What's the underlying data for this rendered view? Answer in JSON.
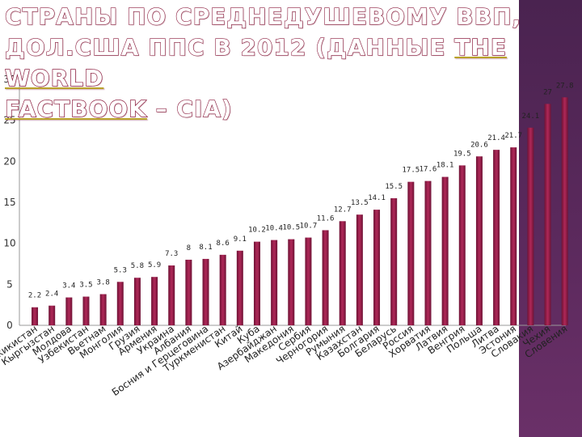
{
  "title": {
    "line1": "СТРАНЫ ПО СРЕДНЕДУШЕВОМУ ВВП,",
    "line2_pre": "ДОЛ.США ППС В 2012 (ДАННЫЕ ",
    "line2_link": "THE WORLD",
    "line3_link": "FACTBOOK",
    "line3_post": " – CIA)"
  },
  "colors": {
    "bar": "#8b1a44",
    "bar_light": "#c03060",
    "sidebar": "#4a2350",
    "grid": "#bbbbbb"
  },
  "chart_data": {
    "type": "bar",
    "title": "СТРАНЫ ПО СРЕДНЕДУШЕВОМУ ВВП, ДОЛ.США ППС В 2012 (ДАННЫЕ THE WORLD FACTBOOK – CIA)",
    "xlabel": "",
    "ylabel": "",
    "ylim": [
      0,
      30
    ],
    "yticks": [
      0,
      5,
      10,
      15,
      20,
      25,
      30
    ],
    "grid": false,
    "legend": "none",
    "categories": [
      "Таджикистан",
      "Кыргызстан",
      "Молдова",
      "Узбекистан",
      "Вьетнам",
      "Монголия",
      "Грузия",
      "Армения",
      "Украина",
      "Албания",
      "Босния и Герцеговина",
      "Туркменистан",
      "Китай",
      "Куба",
      "Азербайджан",
      "Македония",
      "Сербия",
      "Черногория",
      "Румыния",
      "Казахстан",
      "Болгария",
      "Беларусь",
      "Россия",
      "Хорватия",
      "Латвия",
      "Венгрия",
      "Польша",
      "Литва",
      "Эстония",
      "Словакия",
      "Чехия",
      "Словения"
    ],
    "values": [
      2.2,
      2.4,
      3.4,
      3.5,
      3.8,
      5.3,
      5.8,
      5.9,
      7.3,
      8,
      8.1,
      8.6,
      9.1,
      10.2,
      10.4,
      10.5,
      10.7,
      11.6,
      12.7,
      13.5,
      14.1,
      15.5,
      17.5,
      17.6,
      18.1,
      19.5,
      20.6,
      21.4,
      21.7,
      24.1,
      27,
      27.8
    ],
    "value_labels": [
      "2.2",
      "2.4",
      "3.4",
      "3.5",
      "3.8",
      "5.3",
      "5.8",
      "5.9",
      "7.3",
      "8",
      "8.1",
      "8.6",
      "9.1",
      "10.2",
      "10.4",
      "10.5",
      "10.7",
      "11.6",
      "12.7",
      "13.5",
      "14.1",
      "15.5",
      "17.5",
      "17.6",
      "18.1",
      "19.5",
      "20.6",
      "21.4",
      "21.7",
      "24.1",
      "27",
      "27.8"
    ]
  }
}
